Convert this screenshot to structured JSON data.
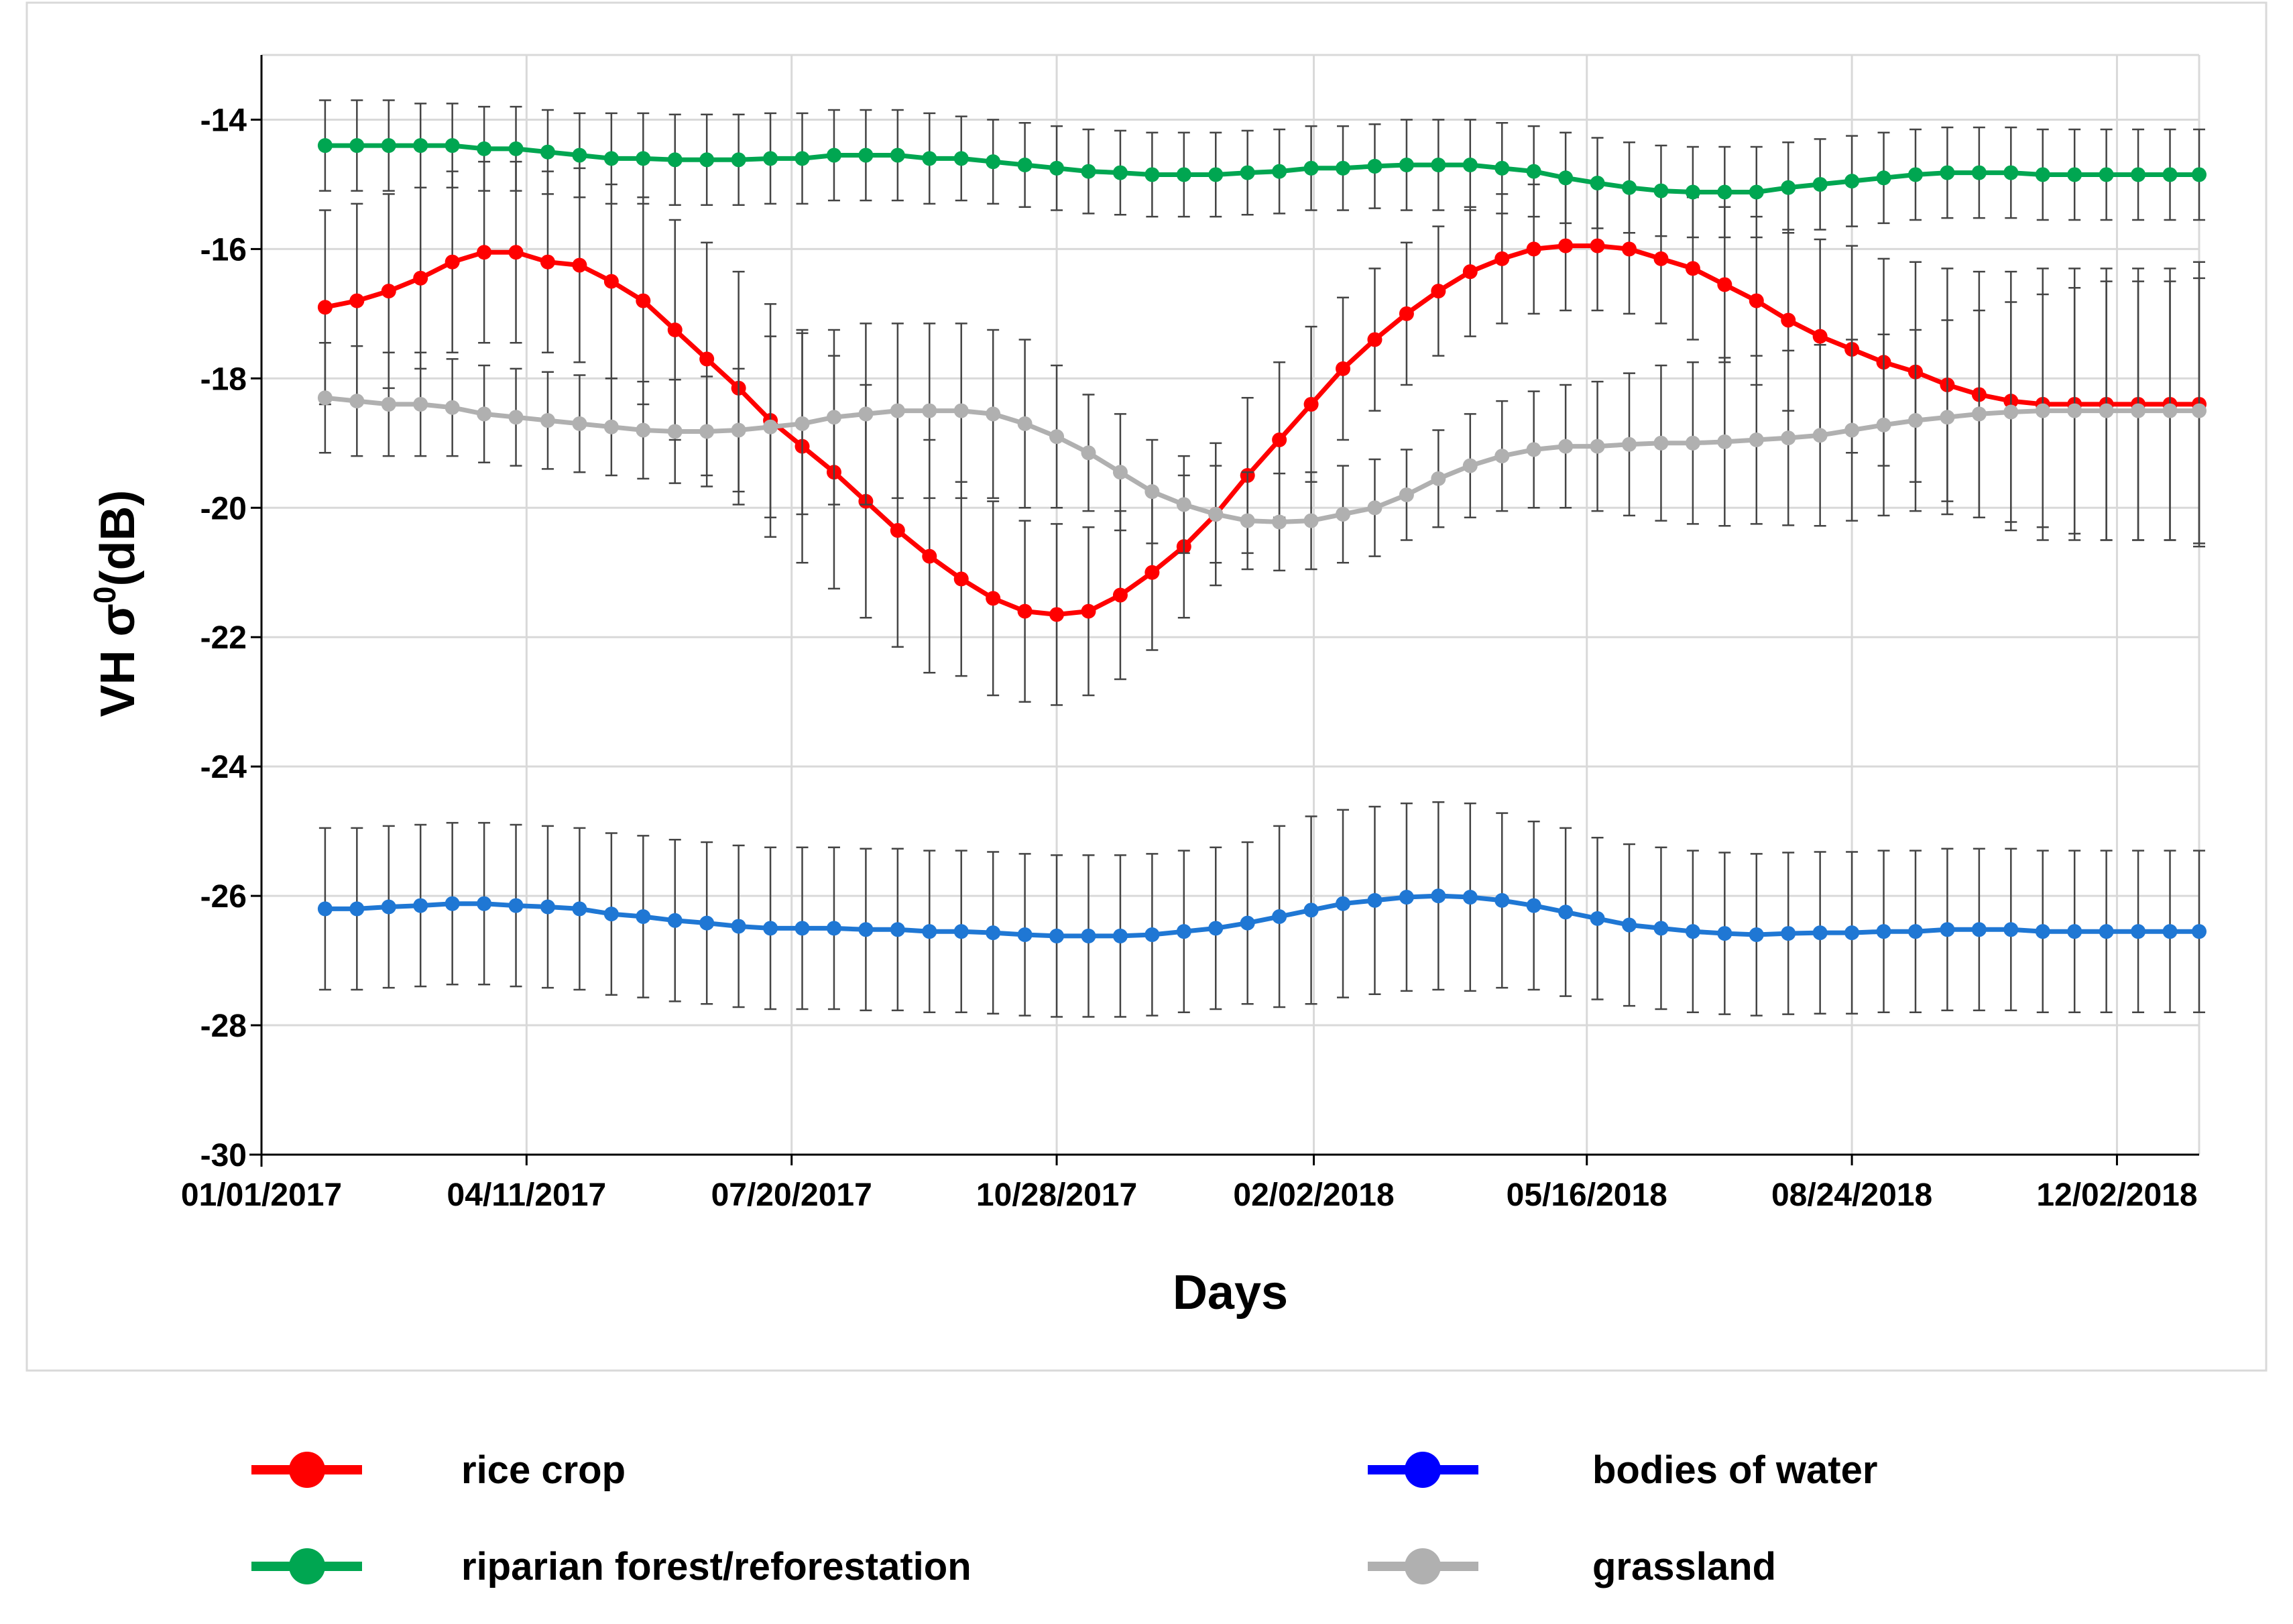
{
  "chart_data": {
    "type": "line",
    "title": "",
    "xlabel": "Days",
    "ylabel_prefix": "VH σ",
    "ylabel_superscript": "0",
    "ylabel_suffix": "(dB)",
    "ylim": [
      -30,
      -13
    ],
    "yticks": [
      -30,
      -28,
      -26,
      -24,
      -22,
      -20,
      -18,
      -16,
      -14
    ],
    "xlim": [
      0,
      731
    ],
    "xticks": [
      {
        "day": 0,
        "label": "01/01/2017"
      },
      {
        "day": 100,
        "label": "04/11/2017"
      },
      {
        "day": 200,
        "label": "07/20/2017"
      },
      {
        "day": 300,
        "label": "10/28/2017"
      },
      {
        "day": 397,
        "label": "02/02/2018"
      },
      {
        "day": 500,
        "label": "05/16/2018"
      },
      {
        "day": 600,
        "label": "08/24/2018"
      },
      {
        "day": 700,
        "label": "12/02/2018"
      }
    ],
    "grid": true,
    "legend_position": "bottom",
    "x": [
      24,
      36,
      48,
      60,
      72,
      84,
      96,
      108,
      120,
      132,
      144,
      156,
      168,
      180,
      192,
      204,
      216,
      228,
      240,
      252,
      264,
      276,
      288,
      300,
      312,
      324,
      336,
      348,
      360,
      372,
      384,
      396,
      408,
      420,
      432,
      444,
      456,
      468,
      480,
      492,
      504,
      516,
      528,
      540,
      552,
      564,
      576,
      588,
      600,
      612,
      624,
      636,
      648,
      660,
      672,
      684,
      696,
      708,
      720,
      731
    ],
    "series": [
      {
        "name": "rice crop",
        "color": "#ff0000",
        "values": [
          -16.9,
          -16.8,
          -16.65,
          -16.45,
          -16.2,
          -16.05,
          -16.05,
          -16.2,
          -16.25,
          -16.5,
          -16.8,
          -17.25,
          -17.7,
          -18.15,
          -18.65,
          -19.05,
          -19.45,
          -19.9,
          -20.35,
          -20.75,
          -21.1,
          -21.4,
          -21.6,
          -21.65,
          -21.6,
          -21.35,
          -21.0,
          -20.6,
          -20.1,
          -19.5,
          -18.95,
          -18.4,
          -17.85,
          -17.4,
          -17.0,
          -16.65,
          -16.35,
          -16.15,
          -16.0,
          -15.95,
          -15.95,
          -16.0,
          -16.15,
          -16.3,
          -16.55,
          -16.8,
          -17.1,
          -17.35,
          -17.55,
          -17.75,
          -17.9,
          -18.1,
          -18.25,
          -18.35,
          -18.4,
          -18.4,
          -18.4,
          -18.4,
          -18.4,
          -18.4
        ],
        "errors": [
          1.5,
          1.5,
          1.5,
          1.4,
          1.4,
          1.4,
          1.4,
          1.4,
          1.5,
          1.5,
          1.6,
          1.7,
          1.8,
          1.8,
          1.8,
          1.8,
          1.8,
          1.8,
          1.8,
          1.8,
          1.5,
          1.5,
          1.4,
          1.4,
          1.3,
          1.3,
          1.2,
          1.1,
          1.1,
          1.2,
          1.2,
          1.2,
          1.1,
          1.1,
          1.1,
          1.0,
          1.0,
          1.0,
          1.0,
          1.0,
          1.0,
          1.0,
          1.0,
          1.1,
          1.2,
          1.3,
          1.4,
          1.5,
          1.6,
          1.6,
          1.7,
          1.8,
          1.9,
          2.0,
          2.1,
          2.1,
          2.1,
          2.1,
          2.1,
          2.2
        ]
      },
      {
        "name": "bodies of water",
        "color": "#0000ff",
        "marker_color": "#1f77d4",
        "values": [
          -26.2,
          -26.2,
          -26.17,
          -26.15,
          -26.12,
          -26.12,
          -26.15,
          -26.17,
          -26.2,
          -26.28,
          -26.32,
          -26.38,
          -26.42,
          -26.47,
          -26.5,
          -26.5,
          -26.5,
          -26.52,
          -26.52,
          -26.55,
          -26.55,
          -26.57,
          -26.6,
          -26.62,
          -26.62,
          -26.62,
          -26.6,
          -26.55,
          -26.5,
          -26.42,
          -26.32,
          -26.22,
          -26.12,
          -26.07,
          -26.02,
          -26.0,
          -26.02,
          -26.07,
          -26.15,
          -26.25,
          -26.35,
          -26.45,
          -26.5,
          -26.55,
          -26.58,
          -26.6,
          -26.58,
          -26.57,
          -26.57,
          -26.55,
          -26.55,
          -26.52,
          -26.52,
          -26.52,
          -26.55,
          -26.55,
          -26.55,
          -26.55,
          -26.55,
          -26.55
        ],
        "errors": [
          1.25,
          1.25,
          1.25,
          1.25,
          1.25,
          1.25,
          1.25,
          1.25,
          1.25,
          1.25,
          1.25,
          1.25,
          1.25,
          1.25,
          1.25,
          1.25,
          1.25,
          1.25,
          1.25,
          1.25,
          1.25,
          1.25,
          1.25,
          1.25,
          1.25,
          1.25,
          1.25,
          1.25,
          1.25,
          1.25,
          1.4,
          1.45,
          1.45,
          1.45,
          1.45,
          1.45,
          1.45,
          1.35,
          1.3,
          1.3,
          1.25,
          1.25,
          1.25,
          1.25,
          1.25,
          1.25,
          1.25,
          1.25,
          1.25,
          1.25,
          1.25,
          1.25,
          1.25,
          1.25,
          1.25,
          1.25,
          1.25,
          1.25,
          1.25,
          1.25
        ]
      },
      {
        "name": "riparian forest/reforestation",
        "color": "#00a651",
        "values": [
          -14.4,
          -14.4,
          -14.4,
          -14.4,
          -14.4,
          -14.45,
          -14.45,
          -14.5,
          -14.55,
          -14.6,
          -14.6,
          -14.62,
          -14.62,
          -14.62,
          -14.6,
          -14.6,
          -14.55,
          -14.55,
          -14.55,
          -14.6,
          -14.6,
          -14.65,
          -14.7,
          -14.75,
          -14.8,
          -14.82,
          -14.85,
          -14.85,
          -14.85,
          -14.82,
          -14.8,
          -14.75,
          -14.75,
          -14.72,
          -14.7,
          -14.7,
          -14.7,
          -14.75,
          -14.8,
          -14.9,
          -14.98,
          -15.05,
          -15.1,
          -15.12,
          -15.12,
          -15.12,
          -15.05,
          -15.0,
          -14.95,
          -14.9,
          -14.85,
          -14.82,
          -14.82,
          -14.82,
          -14.85,
          -14.85,
          -14.85,
          -14.85,
          -14.85,
          -14.85
        ],
        "errors": [
          0.7,
          0.7,
          0.7,
          0.65,
          0.65,
          0.65,
          0.65,
          0.65,
          0.65,
          0.7,
          0.7,
          0.7,
          0.7,
          0.7,
          0.7,
          0.7,
          0.7,
          0.7,
          0.7,
          0.7,
          0.65,
          0.65,
          0.65,
          0.65,
          0.65,
          0.65,
          0.65,
          0.65,
          0.65,
          0.65,
          0.65,
          0.65,
          0.65,
          0.65,
          0.7,
          0.7,
          0.7,
          0.7,
          0.7,
          0.7,
          0.7,
          0.7,
          0.7,
          0.7,
          0.7,
          0.7,
          0.7,
          0.7,
          0.7,
          0.7,
          0.7,
          0.7,
          0.7,
          0.7,
          0.7,
          0.7,
          0.7,
          0.7,
          0.7,
          0.7
        ]
      },
      {
        "name": "grassland",
        "color": "#b0b0b0",
        "values": [
          -18.3,
          -18.35,
          -18.4,
          -18.4,
          -18.45,
          -18.55,
          -18.6,
          -18.65,
          -18.7,
          -18.75,
          -18.8,
          -18.82,
          -18.82,
          -18.8,
          -18.75,
          -18.7,
          -18.6,
          -18.55,
          -18.5,
          -18.5,
          -18.5,
          -18.55,
          -18.7,
          -18.9,
          -19.15,
          -19.45,
          -19.75,
          -19.95,
          -20.1,
          -20.2,
          -20.22,
          -20.2,
          -20.1,
          -20.0,
          -19.8,
          -19.55,
          -19.35,
          -19.2,
          -19.1,
          -19.05,
          -19.05,
          -19.02,
          -19.0,
          -19.0,
          -18.98,
          -18.95,
          -18.92,
          -18.88,
          -18.8,
          -18.72,
          -18.65,
          -18.6,
          -18.55,
          -18.52,
          -18.5,
          -18.5,
          -18.5,
          -18.5,
          -18.5,
          -18.5
        ],
        "errors": [
          0.85,
          0.85,
          0.8,
          0.8,
          0.75,
          0.75,
          0.75,
          0.75,
          0.75,
          0.75,
          0.75,
          0.8,
          0.85,
          0.95,
          1.4,
          1.4,
          1.35,
          1.4,
          1.35,
          1.35,
          1.35,
          1.3,
          1.3,
          1.1,
          0.9,
          0.9,
          0.8,
          0.75,
          0.75,
          0.75,
          0.75,
          0.75,
          0.75,
          0.75,
          0.7,
          0.75,
          0.8,
          0.85,
          0.9,
          0.95,
          1.0,
          1.1,
          1.2,
          1.25,
          1.3,
          1.3,
          1.35,
          1.4,
          1.4,
          1.4,
          1.4,
          1.5,
          1.6,
          1.7,
          1.8,
          1.9,
          2.0,
          2.0,
          2.0,
          2.05
        ]
      }
    ]
  },
  "legend": {
    "items": [
      {
        "label": "rice crop",
        "color": "#ff0000"
      },
      {
        "label": "bodies of water",
        "color": "#0000ff"
      },
      {
        "label": "riparian forest/reforestation",
        "color": "#00a651"
      },
      {
        "label": "grassland",
        "color": "#b0b0b0"
      }
    ]
  }
}
